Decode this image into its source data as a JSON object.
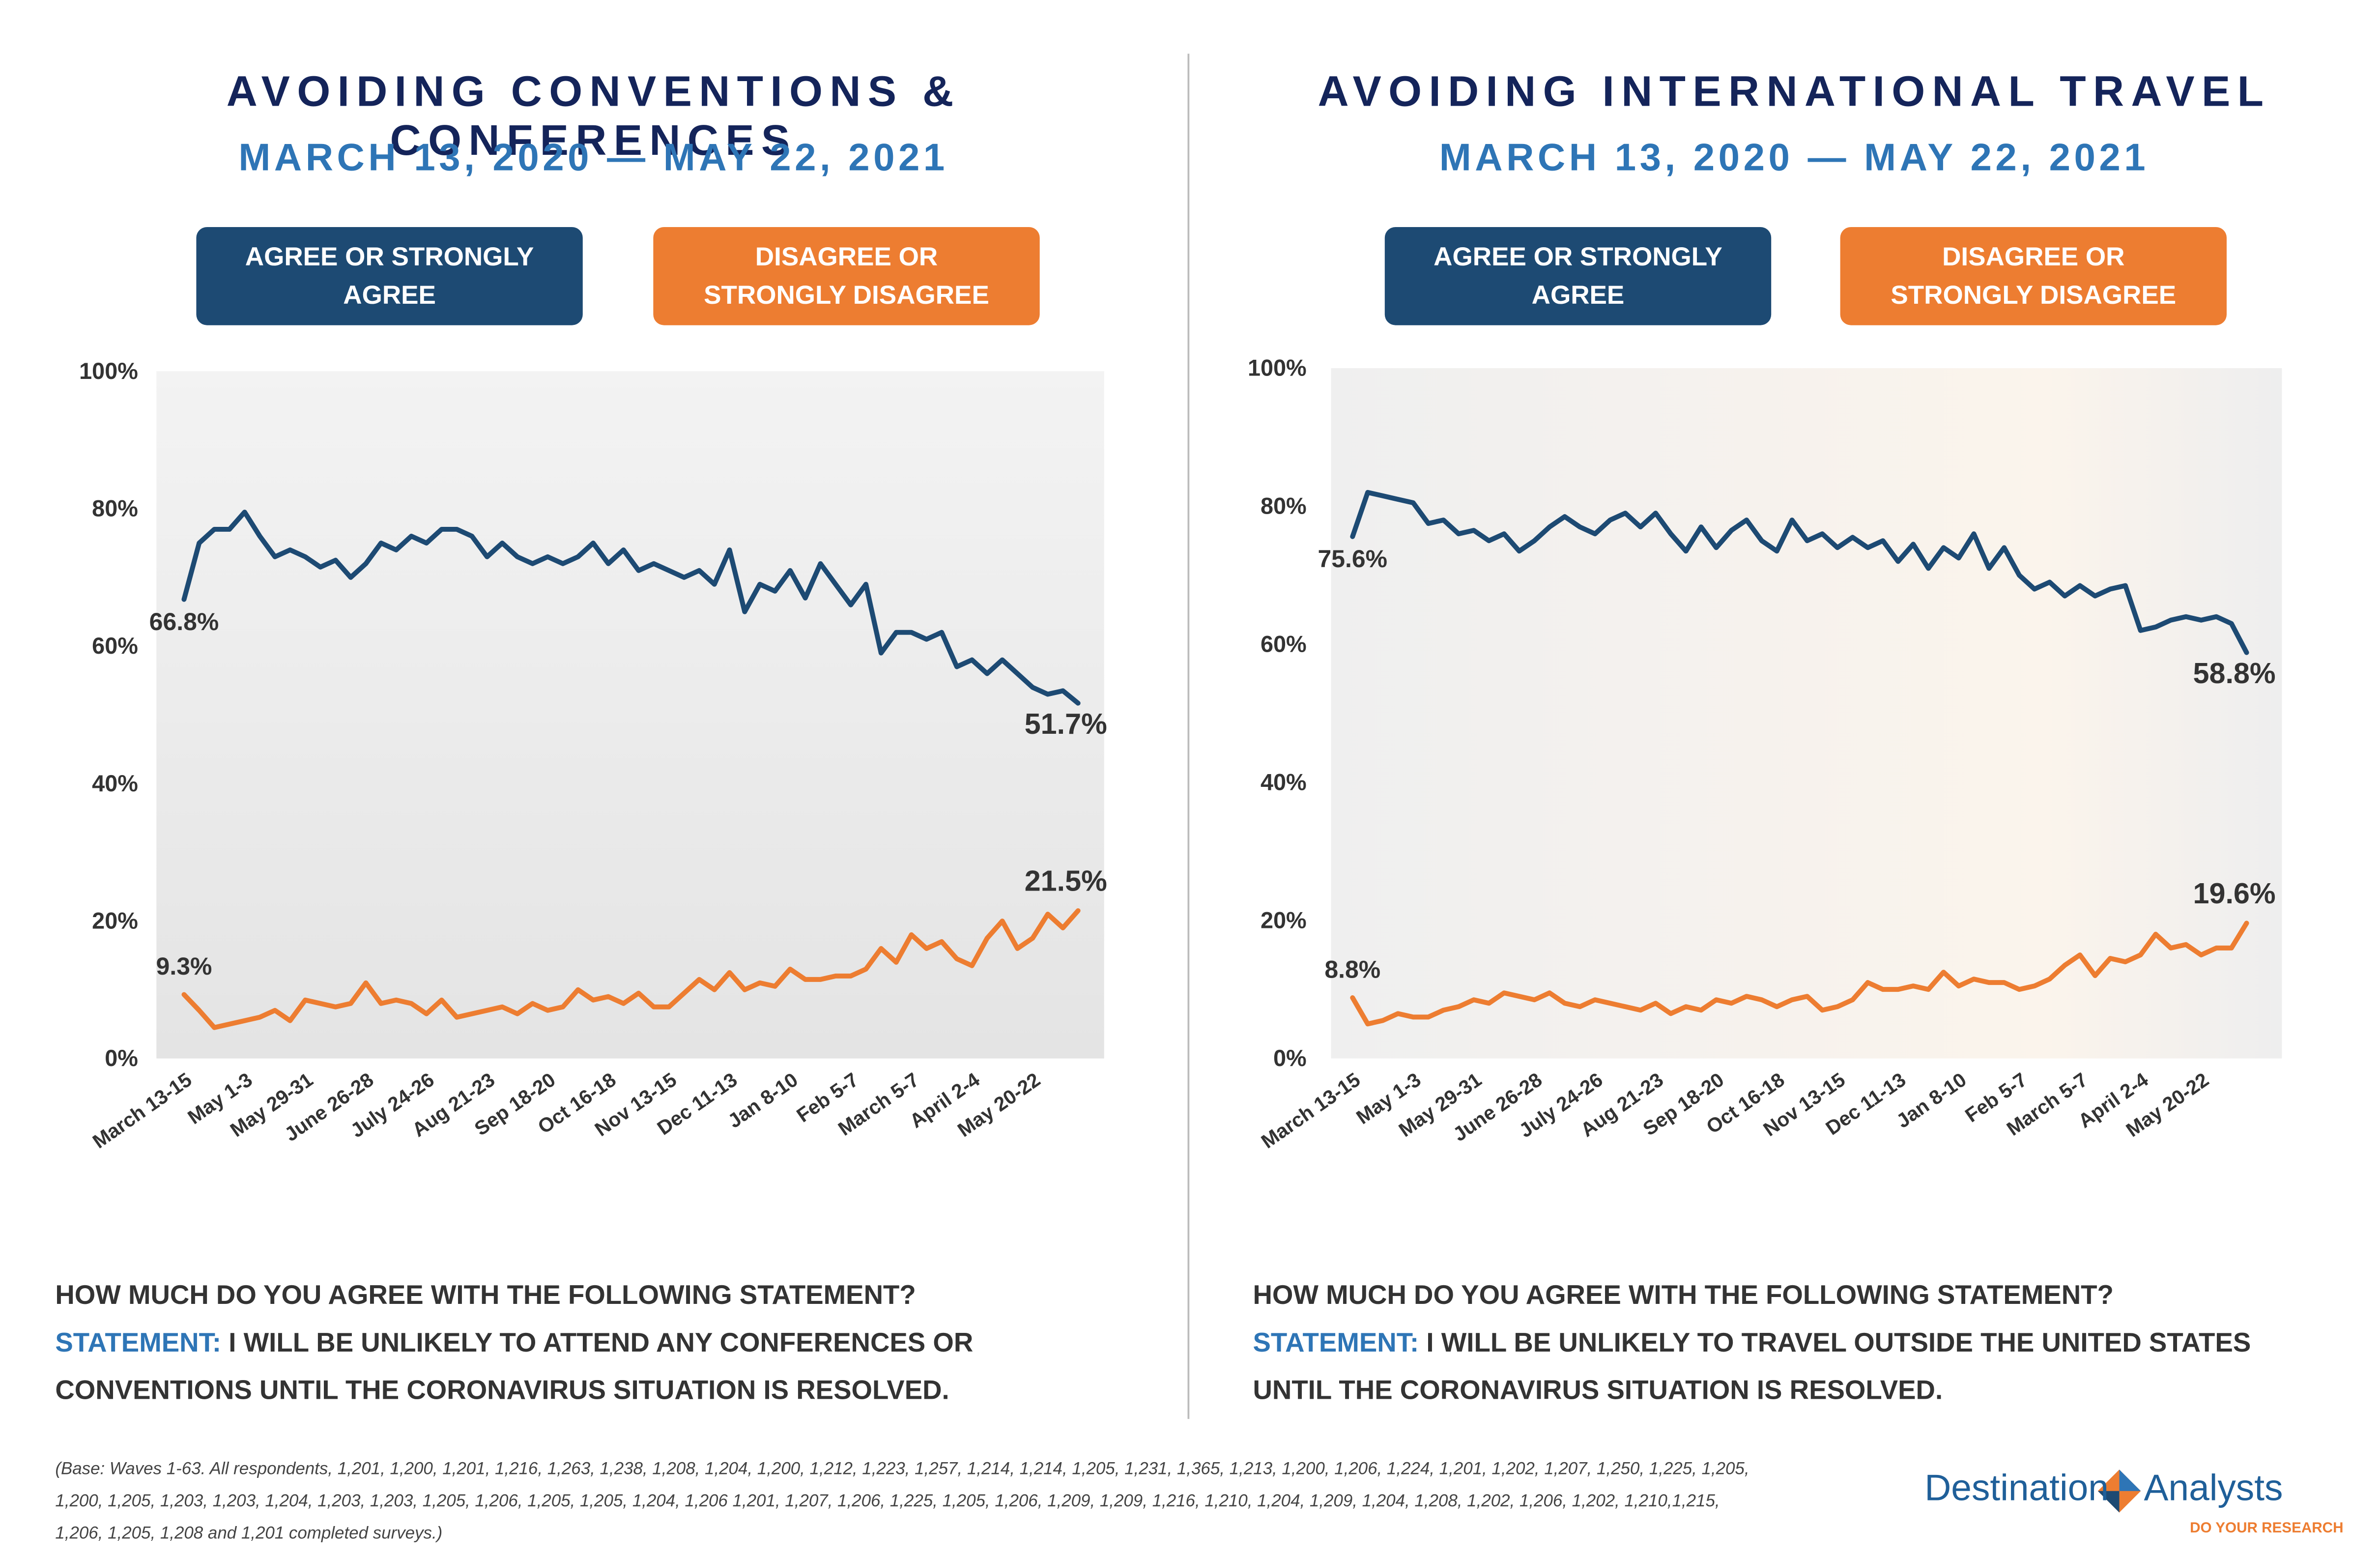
{
  "chart_data": [
    {
      "type": "line",
      "title": "AVOIDING CONVENTIONS & CONFERENCES",
      "subtitle": "MARCH 13, 2020 — MAY 22, 2021",
      "categories": [
        "March 13-15",
        null,
        null,
        null,
        "May 1-3",
        null,
        null,
        null,
        "May 29-31",
        null,
        null,
        null,
        "June 26-28",
        null,
        null,
        null,
        "July 24-26",
        null,
        null,
        null,
        "Aug 21-23",
        null,
        null,
        null,
        "Sep 18-20",
        null,
        null,
        null,
        "Oct 16-18",
        null,
        null,
        null,
        "Nov 13-15",
        null,
        null,
        null,
        "Dec 11-13",
        null,
        null,
        null,
        "Jan 8-10",
        null,
        null,
        null,
        "Feb 5-7",
        null,
        null,
        null,
        "March 5-7",
        null,
        null,
        null,
        "April 2-4",
        null,
        null,
        null,
        "May 20-22",
        null,
        null,
        null
      ],
      "series": [
        {
          "name": "AGREE OR STRONGLY AGREE",
          "color": "#1d4a73",
          "values": [
            66.8,
            75,
            77,
            77,
            79.5,
            76,
            73,
            74,
            73,
            71.5,
            72.5,
            70,
            72,
            75,
            74,
            76,
            75,
            77,
            77,
            76,
            73,
            75,
            73,
            72,
            73,
            72,
            73,
            75,
            72,
            74,
            71,
            72,
            71,
            70,
            71,
            69,
            74,
            65,
            69,
            68,
            71,
            67,
            72,
            69,
            66,
            69,
            59,
            62,
            62,
            61,
            62,
            57,
            58,
            56,
            58,
            56,
            54,
            53,
            53.5,
            51.7
          ],
          "value_labels": [
            "66.8%",
            null,
            null,
            null,
            null,
            null,
            null,
            null,
            null,
            null,
            null,
            null,
            null,
            null,
            null,
            null,
            null,
            null,
            null,
            null,
            null,
            null,
            null,
            null,
            null,
            null,
            null,
            null,
            null,
            null,
            null,
            null,
            null,
            null,
            null,
            null,
            null,
            null,
            null,
            null,
            null,
            null,
            null,
            null,
            null,
            null,
            null,
            null,
            null,
            null,
            null,
            null,
            null,
            null,
            null,
            null,
            null,
            null,
            null,
            "51.7%"
          ]
        },
        {
          "name": "DISAGREE OR STRONGLY DISAGREE",
          "color": "#ed7d31",
          "values": [
            9.3,
            7,
            4.5,
            5,
            5.5,
            6,
            7,
            5.5,
            8.5,
            8,
            7.5,
            8,
            11,
            8,
            8.5,
            8,
            6.5,
            8.5,
            6,
            6.5,
            7,
            7.5,
            6.5,
            8,
            7,
            7.5,
            10,
            8.5,
            9,
            8,
            9.5,
            7.5,
            7.5,
            9.5,
            11.5,
            10,
            12.5,
            10,
            11,
            10.5,
            13,
            11.5,
            11.5,
            12,
            12,
            13,
            16,
            14,
            18,
            16,
            17,
            14.5,
            13.5,
            17.5,
            20,
            16,
            17.5,
            21,
            19,
            21.5
          ],
          "value_labels": [
            "9.3%",
            null,
            null,
            null,
            null,
            null,
            null,
            null,
            null,
            null,
            null,
            null,
            null,
            null,
            null,
            null,
            null,
            null,
            null,
            null,
            null,
            null,
            null,
            null,
            null,
            null,
            null,
            null,
            null,
            null,
            null,
            null,
            null,
            null,
            null,
            null,
            null,
            null,
            null,
            null,
            null,
            null,
            null,
            null,
            null,
            null,
            null,
            null,
            null,
            null,
            null,
            null,
            null,
            null,
            null,
            null,
            null,
            null,
            null,
            "21.5%"
          ]
        }
      ],
      "ylim": [
        0,
        100
      ],
      "yticks": [
        {
          "value": 0,
          "label": "0%"
        },
        {
          "value": 20,
          "label": "20%"
        },
        {
          "value": 40,
          "label": "40%"
        },
        {
          "value": 60,
          "label": "60%"
        },
        {
          "value": 80,
          "label": "80%"
        },
        {
          "value": 100,
          "label": "100%"
        }
      ],
      "grid": false,
      "question": "HOW MUCH DO YOU AGREE WITH THE FOLLOWING STATEMENT?",
      "statement_label": "STATEMENT:",
      "statement": "I WILL BE UNLIKELY TO ATTEND ANY CONFERENCES OR CONVENTIONS UNTIL THE CORONAVIRUS SITUATION IS RESOLVED."
    },
    {
      "type": "line",
      "title": "AVOIDING INTERNATIONAL TRAVEL",
      "subtitle": "MARCH 13, 2020 — MAY 22, 2021",
      "categories": [
        "March 13-15",
        null,
        null,
        null,
        "May 1-3",
        null,
        null,
        null,
        "May 29-31",
        null,
        null,
        null,
        "June 26-28",
        null,
        null,
        null,
        "July 24-26",
        null,
        null,
        null,
        "Aug 21-23",
        null,
        null,
        null,
        "Sep 18-20",
        null,
        null,
        null,
        "Oct 16-18",
        null,
        null,
        null,
        "Nov 13-15",
        null,
        null,
        null,
        "Dec 11-13",
        null,
        null,
        null,
        "Jan 8-10",
        null,
        null,
        null,
        "Feb 5-7",
        null,
        null,
        null,
        "March 5-7",
        null,
        null,
        null,
        "April 2-4",
        null,
        null,
        null,
        "May 20-22",
        null,
        null,
        null
      ],
      "series": [
        {
          "name": "AGREE OR STRONGLY AGREE",
          "color": "#1d4a73",
          "values": [
            75.6,
            82,
            81.5,
            81,
            80.5,
            77.5,
            78,
            76,
            76.5,
            75,
            76,
            73.5,
            75,
            77,
            78.5,
            77,
            76,
            78,
            79,
            77,
            79,
            76,
            73.5,
            77,
            74,
            76.5,
            78,
            75,
            73.5,
            78,
            75,
            76,
            74,
            75.5,
            74,
            75,
            72,
            74.5,
            71,
            74,
            72.5,
            76,
            71,
            74,
            70,
            68,
            69,
            67,
            68.5,
            67,
            68,
            68.5,
            62,
            62.5,
            63.5,
            64,
            63.5,
            64,
            63,
            58.8
          ],
          "value_labels": [
            "75.6%",
            null,
            null,
            null,
            null,
            null,
            null,
            null,
            null,
            null,
            null,
            null,
            null,
            null,
            null,
            null,
            null,
            null,
            null,
            null,
            null,
            null,
            null,
            null,
            null,
            null,
            null,
            null,
            null,
            null,
            null,
            null,
            null,
            null,
            null,
            null,
            null,
            null,
            null,
            null,
            null,
            null,
            null,
            null,
            null,
            null,
            null,
            null,
            null,
            null,
            null,
            null,
            null,
            null,
            null,
            null,
            null,
            null,
            null,
            "58.8%"
          ]
        },
        {
          "name": "DISAGREE OR STRONGLY DISAGREE",
          "color": "#ed7d31",
          "values": [
            8.8,
            5,
            5.5,
            6.5,
            6,
            6,
            7,
            7.5,
            8.5,
            8,
            9.5,
            9,
            8.5,
            9.5,
            8,
            7.5,
            8.5,
            8,
            7.5,
            7,
            8,
            6.5,
            7.5,
            7,
            8.5,
            8,
            9,
            8.5,
            7.5,
            8.5,
            9,
            7,
            7.5,
            8.5,
            11,
            10,
            10,
            10.5,
            10,
            12.5,
            10.5,
            11.5,
            11,
            11,
            10,
            10.5,
            11.5,
            13.5,
            15,
            12,
            14.5,
            14,
            15,
            18,
            16,
            16.5,
            15,
            16,
            16,
            19.6
          ],
          "value_labels": [
            "8.8%",
            null,
            null,
            null,
            null,
            null,
            null,
            null,
            null,
            null,
            null,
            null,
            null,
            null,
            null,
            null,
            null,
            null,
            null,
            null,
            null,
            null,
            null,
            null,
            null,
            null,
            null,
            null,
            null,
            null,
            null,
            null,
            null,
            null,
            null,
            null,
            null,
            null,
            null,
            null,
            null,
            null,
            null,
            null,
            null,
            null,
            null,
            null,
            null,
            null,
            null,
            null,
            null,
            null,
            null,
            null,
            null,
            null,
            null,
            "19.6%"
          ]
        }
      ],
      "ylim": [
        0,
        100
      ],
      "yticks": [
        {
          "value": 0,
          "label": "0%"
        },
        {
          "value": 20,
          "label": "20%"
        },
        {
          "value": 40,
          "label": "40%"
        },
        {
          "value": 60,
          "label": "60%"
        },
        {
          "value": 80,
          "label": "80%"
        },
        {
          "value": 100,
          "label": "100%"
        }
      ],
      "grid": false,
      "question": "HOW MUCH DO YOU AGREE WITH THE FOLLOWING STATEMENT?",
      "statement_label": "STATEMENT:",
      "statement": "I WILL BE UNLIKELY TO TRAVEL OUTSIDE THE UNITED STATES UNTIL THE CORONAVIRUS SITUATION IS RESOLVED."
    }
  ],
  "footnote": "(Base: Waves 1-63. All respondents, 1,201, 1,200, 1,201, 1,216, 1,263, 1,238, 1,208, 1,204, 1,200, 1,212, 1,223, 1,257, 1,214, 1,214, 1,205, 1,231, 1,365, 1,213, 1,200, 1,206, 1,224, 1,201, 1,202, 1,207, 1,250, 1,225, 1,205, 1,200, 1,205, 1,203, 1,203, 1,204, 1,203, 1,203, 1,205, 1,206, 1,205, 1,205, 1,204, 1,206 1,201, 1,207, 1,206, 1,225, 1,205, 1,206, 1,209, 1,209, 1,216, 1,210, 1,204, 1,209, 1,204, 1,208, 1,202, 1,206, 1,202, 1,210,1,215, 1,206, 1,205, 1,208 and 1,201 completed surveys.)",
  "logo": {
    "word1": "Destination",
    "word2": "Analysts",
    "tagline": "DO YOUR RESEARCH"
  }
}
